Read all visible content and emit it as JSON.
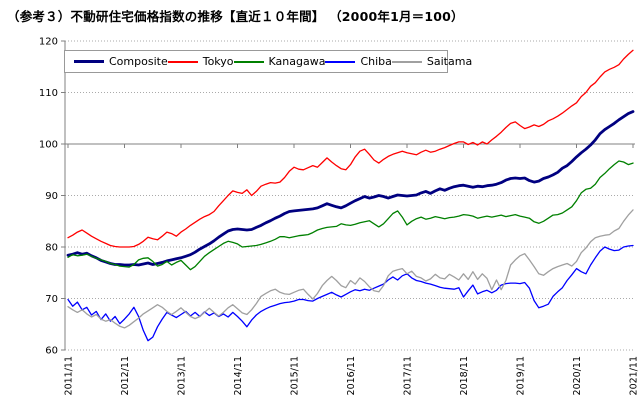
{
  "header": {
    "title_main": "（参考３）不動研住宅価格指数の推移【直近１０年間】",
    "title_suffix": "（2000年1月＝100）"
  },
  "chart_data": {
    "type": "line",
    "x_mode": "monthly",
    "x_start": "2011/11",
    "x_end": "2021/11",
    "x_tick_labels": [
      "2011/11",
      "2012/11",
      "2013/11",
      "2014/11",
      "2015/11",
      "2016/11",
      "2017/11",
      "2018/11",
      "2019/11",
      "2020/11",
      "2021/11"
    ],
    "ylim": [
      60,
      120
    ],
    "y_ticks": [
      60,
      70,
      80,
      90,
      100,
      110,
      120
    ],
    "baseline_axis_value": 100,
    "grid": "horizontal-dotted",
    "legend_position": "top-inside",
    "colors": {
      "composite": "#000080",
      "tokyo": "#ff0000",
      "kanagawa": "#008000",
      "chiba": "#0000ff",
      "saitama": "#a0a0a0",
      "axis": "#808080",
      "gridline": "#aaaaaa"
    },
    "series": [
      {
        "name": "Composite",
        "color": "#000080",
        "width": 2.8,
        "values": [
          78.4,
          78.6,
          78.9,
          78.6,
          78.8,
          78.3,
          77.9,
          77.4,
          77.1,
          76.8,
          76.6,
          76.6,
          76.5,
          76.5,
          76.6,
          76.5,
          76.7,
          76.9,
          76.6,
          76.8,
          77.0,
          77.3,
          77.5,
          77.7,
          77.9,
          78.2,
          78.5,
          79.0,
          79.6,
          80.1,
          80.6,
          81.2,
          81.9,
          82.5,
          83.1,
          83.4,
          83.5,
          83.4,
          83.3,
          83.4,
          83.8,
          84.2,
          84.7,
          85.1,
          85.6,
          86.0,
          86.5,
          86.9,
          87.0,
          87.1,
          87.2,
          87.3,
          87.4,
          87.6,
          88.0,
          88.4,
          88.1,
          87.8,
          87.6,
          88.0,
          88.5,
          89.0,
          89.4,
          89.8,
          89.5,
          89.7,
          90.0,
          89.8,
          89.5,
          89.8,
          90.1,
          90.0,
          89.9,
          90.0,
          90.1,
          90.5,
          90.8,
          90.4,
          90.9,
          91.3,
          91.0,
          91.4,
          91.7,
          91.9,
          92.0,
          91.8,
          91.6,
          91.8,
          91.7,
          91.9,
          92.0,
          92.2,
          92.5,
          93.0,
          93.3,
          93.4,
          93.3,
          93.4,
          92.9,
          92.6,
          92.8,
          93.3,
          93.6,
          94.0,
          94.5,
          95.3,
          95.8,
          96.6,
          97.5,
          98.3,
          99.0,
          99.8,
          100.8,
          102.0,
          102.8,
          103.4,
          104.0,
          104.7,
          105.3,
          105.9,
          106.3
        ]
      },
      {
        "name": "Tokyo",
        "color": "#ff0000",
        "width": 1.3,
        "values": [
          81.8,
          82.3,
          82.9,
          83.3,
          82.7,
          82.1,
          81.6,
          81.1,
          80.7,
          80.3,
          80.1,
          80.0,
          80.0,
          80.0,
          80.1,
          80.5,
          81.1,
          81.9,
          81.6,
          81.4,
          82.1,
          82.9,
          82.6,
          82.1,
          82.9,
          83.5,
          84.2,
          84.8,
          85.4,
          85.9,
          86.3,
          86.9,
          88.0,
          89.0,
          90.0,
          90.9,
          90.6,
          90.4,
          91.1,
          90.0,
          90.8,
          91.8,
          92.2,
          92.5,
          92.4,
          92.6,
          93.5,
          94.7,
          95.5,
          95.1,
          95.0,
          95.4,
          95.8,
          95.5,
          96.4,
          97.3,
          96.5,
          95.8,
          95.2,
          95.0,
          96.0,
          97.5,
          98.6,
          99.0,
          98.0,
          96.9,
          96.3,
          97.0,
          97.6,
          98.0,
          98.3,
          98.6,
          98.3,
          98.1,
          97.9,
          98.4,
          98.8,
          98.4,
          98.6,
          99.0,
          99.3,
          99.7,
          100.1,
          100.4,
          100.4,
          99.9,
          100.3,
          99.8,
          100.4,
          100.0,
          100.8,
          101.5,
          102.3,
          103.2,
          104.0,
          104.3,
          103.6,
          103.0,
          103.3,
          103.7,
          103.4,
          103.8,
          104.5,
          104.9,
          105.4,
          106.0,
          106.7,
          107.4,
          108.0,
          109.2,
          110.0,
          111.2,
          111.9,
          113.0,
          114.0,
          114.5,
          114.9,
          115.4,
          116.5,
          117.4,
          118.2
        ]
      },
      {
        "name": "Kanagawa",
        "color": "#008000",
        "width": 1.3,
        "values": [
          78.0,
          78.5,
          78.3,
          78.4,
          78.6,
          78.2,
          77.8,
          77.5,
          77.2,
          76.8,
          76.6,
          76.3,
          76.2,
          76.1,
          76.6,
          77.5,
          77.8,
          77.9,
          77.2,
          76.3,
          76.6,
          77.2,
          76.5,
          77.0,
          77.4,
          76.5,
          75.6,
          76.2,
          77.2,
          78.2,
          78.9,
          79.5,
          80.1,
          80.7,
          81.1,
          80.9,
          80.6,
          80.0,
          80.1,
          80.2,
          80.3,
          80.5,
          80.8,
          81.1,
          81.5,
          82.0,
          82.0,
          81.8,
          82.0,
          82.2,
          82.3,
          82.4,
          82.8,
          83.3,
          83.6,
          83.8,
          83.9,
          84.0,
          84.5,
          84.3,
          84.2,
          84.4,
          84.7,
          84.9,
          85.1,
          84.5,
          83.9,
          84.5,
          85.5,
          86.5,
          87.0,
          85.8,
          84.3,
          85.0,
          85.5,
          85.8,
          85.4,
          85.6,
          85.9,
          85.7,
          85.5,
          85.7,
          85.8,
          86.0,
          86.3,
          86.2,
          86.0,
          85.6,
          85.8,
          86.0,
          85.8,
          86.0,
          86.2,
          85.9,
          86.1,
          86.3,
          86.0,
          85.8,
          85.6,
          84.9,
          84.6,
          85.0,
          85.6,
          86.2,
          86.3,
          86.6,
          87.2,
          87.8,
          89.0,
          90.5,
          91.2,
          91.4,
          92.2,
          93.5,
          94.3,
          95.2,
          96.0,
          96.7,
          96.5,
          96.0,
          96.3
        ]
      },
      {
        "name": "Chiba",
        "color": "#0000ff",
        "width": 1.3,
        "values": [
          69.8,
          68.5,
          69.3,
          67.8,
          68.3,
          66.8,
          67.5,
          65.9,
          67.0,
          65.6,
          66.5,
          65.1,
          66.0,
          67.0,
          68.3,
          66.5,
          63.8,
          61.8,
          62.5,
          64.5,
          66.0,
          67.3,
          66.8,
          66.3,
          66.9,
          67.5,
          66.6,
          67.3,
          66.5,
          67.4,
          66.7,
          67.2,
          66.5,
          67.0,
          66.4,
          67.3,
          66.5,
          65.6,
          64.5,
          65.8,
          66.8,
          67.5,
          68.0,
          68.4,
          68.7,
          69.0,
          69.2,
          69.3,
          69.5,
          69.8,
          69.8,
          69.6,
          69.5,
          70.0,
          70.4,
          70.8,
          71.2,
          70.7,
          70.3,
          70.8,
          71.3,
          71.7,
          71.5,
          71.8,
          71.6,
          72.0,
          72.4,
          72.8,
          73.6,
          74.2,
          73.6,
          74.4,
          74.8,
          74.0,
          73.5,
          73.3,
          73.0,
          72.8,
          72.5,
          72.2,
          72.0,
          71.9,
          71.8,
          72.1,
          70.3,
          71.5,
          72.6,
          70.9,
          71.3,
          71.6,
          71.1,
          71.6,
          72.6,
          72.9,
          73.0,
          73.0,
          72.9,
          73.1,
          72.0,
          69.6,
          68.2,
          68.5,
          68.9,
          70.4,
          71.3,
          72.1,
          73.5,
          74.6,
          75.8,
          75.2,
          74.8,
          76.5,
          77.9,
          79.2,
          80.0,
          79.6,
          79.3,
          79.4,
          80.0,
          80.2,
          80.3
        ]
      },
      {
        "name": "Saitama",
        "color": "#a0a0a0",
        "width": 1.3,
        "values": [
          68.4,
          67.8,
          67.3,
          67.8,
          67.0,
          66.4,
          66.9,
          66.0,
          65.6,
          65.9,
          65.2,
          64.6,
          64.3,
          64.8,
          65.5,
          66.2,
          67.0,
          67.6,
          68.2,
          68.8,
          68.3,
          67.5,
          66.9,
          67.5,
          68.2,
          67.3,
          66.5,
          66.1,
          66.5,
          67.3,
          68.1,
          67.3,
          66.6,
          67.3,
          68.2,
          68.8,
          68.0,
          67.2,
          66.9,
          67.8,
          69.0,
          70.4,
          71.0,
          71.5,
          71.8,
          71.2,
          70.9,
          70.8,
          71.2,
          71.6,
          71.8,
          70.8,
          69.9,
          71.0,
          72.5,
          73.5,
          74.3,
          73.5,
          72.5,
          72.1,
          73.5,
          72.8,
          74.0,
          73.3,
          72.3,
          71.5,
          71.3,
          72.5,
          74.4,
          75.3,
          75.6,
          75.8,
          74.8,
          75.3,
          74.3,
          74.0,
          73.4,
          73.8,
          74.7,
          74.0,
          73.8,
          74.7,
          74.2,
          73.6,
          74.8,
          73.7,
          75.2,
          73.7,
          74.8,
          73.9,
          71.7,
          73.6,
          71.7,
          73.5,
          76.5,
          77.5,
          78.3,
          78.7,
          77.5,
          76.2,
          74.8,
          74.5,
          75.2,
          75.8,
          76.2,
          76.5,
          76.8,
          76.3,
          77.2,
          78.9,
          79.8,
          81.0,
          81.8,
          82.1,
          82.3,
          82.4,
          83.1,
          83.6,
          85.0,
          86.2,
          87.2
        ]
      }
    ]
  }
}
